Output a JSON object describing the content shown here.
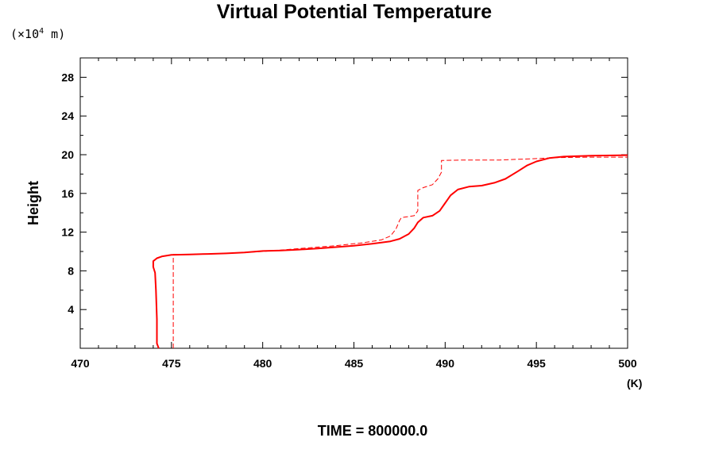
{
  "chart_data": {
    "type": "line",
    "title": "Virtual Potential Temperature",
    "xlabel": "(K)",
    "ylabel": "Height",
    "y_unit": {
      "prefix": "(×10",
      "exponent": "4",
      "suffix": " m)"
    },
    "time_label": "TIME = 800000.0",
    "xlim": [
      470,
      500
    ],
    "ylim": [
      0,
      30
    ],
    "x_major_ticks": [
      470,
      475,
      480,
      485,
      490,
      495,
      500
    ],
    "x_tick_labels": [
      "470",
      "475",
      "480",
      "485",
      "490",
      "495",
      "500"
    ],
    "x_minor_step": 1,
    "y_major_ticks": [
      4,
      8,
      12,
      16,
      20,
      24,
      28
    ],
    "y_tick_labels": [
      "4",
      "8",
      "12",
      "16",
      "20",
      "24",
      "28"
    ],
    "y_minor_step": 2,
    "grid": false,
    "series": [
      {
        "style": "solid",
        "color": "#ff0000",
        "points": [
          [
            474.3,
            0.0
          ],
          [
            474.2,
            0.5
          ],
          [
            474.2,
            3
          ],
          [
            474.15,
            6
          ],
          [
            474.1,
            7.8
          ],
          [
            474.0,
            8.4
          ],
          [
            474.0,
            9.0
          ],
          [
            474.2,
            9.3
          ],
          [
            474.5,
            9.5
          ],
          [
            475.0,
            9.65
          ],
          [
            476.0,
            9.7
          ],
          [
            477.0,
            9.75
          ],
          [
            478.0,
            9.8
          ],
          [
            479.0,
            9.9
          ],
          [
            480.0,
            10.05
          ],
          [
            481.0,
            10.1
          ],
          [
            482.0,
            10.2
          ],
          [
            483.0,
            10.3
          ],
          [
            484.0,
            10.45
          ],
          [
            485.0,
            10.6
          ],
          [
            486.0,
            10.8
          ],
          [
            487.0,
            11.05
          ],
          [
            487.5,
            11.3
          ],
          [
            488.0,
            11.8
          ],
          [
            488.3,
            12.4
          ],
          [
            488.5,
            13.0
          ],
          [
            488.8,
            13.5
          ],
          [
            489.3,
            13.7
          ],
          [
            489.7,
            14.2
          ],
          [
            490.0,
            15.0
          ],
          [
            490.3,
            15.8
          ],
          [
            490.7,
            16.4
          ],
          [
            491.3,
            16.7
          ],
          [
            492.0,
            16.8
          ],
          [
            492.7,
            17.1
          ],
          [
            493.3,
            17.5
          ],
          [
            494.0,
            18.3
          ],
          [
            494.5,
            18.9
          ],
          [
            495.0,
            19.3
          ],
          [
            495.7,
            19.65
          ],
          [
            496.5,
            19.8
          ],
          [
            498.0,
            19.9
          ],
          [
            500.0,
            19.95
          ]
        ]
      },
      {
        "style": "dashed",
        "color": "#ff0000",
        "points": [
          [
            475.1,
            0.0
          ],
          [
            475.1,
            9.7
          ],
          [
            476.0,
            9.7
          ],
          [
            478.0,
            9.8
          ],
          [
            480.0,
            10.0
          ],
          [
            482.0,
            10.3
          ],
          [
            484.0,
            10.6
          ],
          [
            485.5,
            10.9
          ],
          [
            486.5,
            11.2
          ],
          [
            487.0,
            11.6
          ],
          [
            487.3,
            12.3
          ],
          [
            487.5,
            13.2
          ],
          [
            487.6,
            13.5
          ],
          [
            488.3,
            13.7
          ],
          [
            488.5,
            14.2
          ],
          [
            488.5,
            16.3
          ],
          [
            488.8,
            16.6
          ],
          [
            489.3,
            16.9
          ],
          [
            489.6,
            17.5
          ],
          [
            489.8,
            18.2
          ],
          [
            489.8,
            19.4
          ],
          [
            491.0,
            19.45
          ],
          [
            493.0,
            19.45
          ],
          [
            495.0,
            19.6
          ],
          [
            496.0,
            19.7
          ],
          [
            498.0,
            19.75
          ],
          [
            500.0,
            19.75
          ]
        ]
      }
    ]
  }
}
